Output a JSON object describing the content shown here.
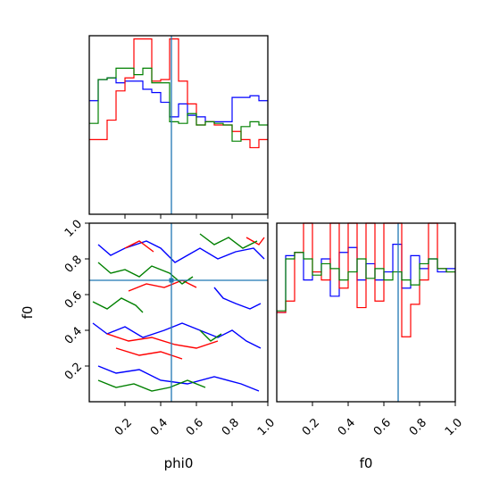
{
  "chart_data": [
    {
      "type": "histogram",
      "panel": "phi0 marginal",
      "xlim": [
        0,
        1
      ],
      "bin_edges": [
        0.0,
        0.05,
        0.1,
        0.15,
        0.2,
        0.25,
        0.3,
        0.35,
        0.4,
        0.45,
        0.5,
        0.55,
        0.6,
        0.65,
        0.7,
        0.75,
        0.8,
        0.85,
        0.9,
        0.95,
        1.0
      ],
      "y_ticks_shown": false,
      "series": [
        {
          "color": "#0000ff",
          "heights": [
            0.7,
            0.83,
            0.84,
            0.81,
            0.82,
            0.82,
            0.77,
            0.75,
            0.69,
            0.6,
            0.68,
            0.61,
            0.6,
            0.57,
            0.57,
            0.57,
            0.72,
            0.72,
            0.73,
            0.7
          ]
        },
        {
          "color": "#ff0000",
          "heights": [
            0.46,
            0.46,
            0.58,
            0.76,
            0.84,
            1.08,
            1.08,
            0.82,
            0.83,
            1.08,
            0.82,
            0.68,
            0.55,
            0.57,
            0.55,
            0.55,
            0.51,
            0.46,
            0.41,
            0.46
          ]
        },
        {
          "color": "#008000",
          "heights": [
            0.56,
            0.83,
            0.84,
            0.9,
            0.9,
            0.86,
            0.9,
            0.81,
            0.81,
            0.57,
            0.56,
            0.62,
            0.55,
            0.57,
            0.56,
            0.55,
            0.45,
            0.54,
            0.57,
            0.55
          ]
        }
      ],
      "truth_line": {
        "x": 0.46,
        "color": "#1f77b4"
      },
      "x_ticks": [
        "0.2",
        "0.4",
        "0.6",
        "0.8",
        "1.0"
      ]
    },
    {
      "type": "contour",
      "panel": "phi0 vs f0 joint",
      "xlabel": "phi0",
      "ylabel": "f0",
      "xlim": [
        0,
        1
      ],
      "ylim": [
        0,
        1
      ],
      "x_tick_labels": [
        "0.2",
        "0.4",
        "0.6",
        "0.8",
        "1.0"
      ],
      "y_tick_labels": [
        "0.2",
        "0.4",
        "0.6",
        "0.8",
        "1.0"
      ],
      "series": [
        {
          "color": "#0000ff",
          "contours": [
            [
              [
                0.05,
                0.88
              ],
              [
                0.12,
                0.82
              ],
              [
                0.2,
                0.86
              ],
              [
                0.32,
                0.9
              ],
              [
                0.4,
                0.86
              ],
              [
                0.48,
                0.78
              ],
              [
                0.55,
                0.82
              ],
              [
                0.62,
                0.86
              ],
              [
                0.72,
                0.8
              ],
              [
                0.82,
                0.84
              ],
              [
                0.92,
                0.86
              ],
              [
                0.98,
                0.8
              ]
            ],
            [
              [
                0.02,
                0.44
              ],
              [
                0.1,
                0.38
              ],
              [
                0.2,
                0.42
              ],
              [
                0.3,
                0.36
              ],
              [
                0.42,
                0.4
              ],
              [
                0.52,
                0.44
              ],
              [
                0.62,
                0.4
              ],
              [
                0.72,
                0.36
              ],
              [
                0.8,
                0.4
              ],
              [
                0.88,
                0.34
              ],
              [
                0.96,
                0.3
              ]
            ],
            [
              [
                0.7,
                0.64
              ],
              [
                0.75,
                0.58
              ],
              [
                0.82,
                0.55
              ],
              [
                0.9,
                0.52
              ],
              [
                0.96,
                0.55
              ]
            ],
            [
              [
                0.05,
                0.2
              ],
              [
                0.15,
                0.16
              ],
              [
                0.28,
                0.18
              ],
              [
                0.4,
                0.12
              ],
              [
                0.55,
                0.1
              ],
              [
                0.7,
                0.14
              ],
              [
                0.85,
                0.1
              ],
              [
                0.95,
                0.06
              ]
            ]
          ]
        },
        {
          "color": "#ff0000",
          "contours": [
            [
              [
                0.1,
                0.38
              ],
              [
                0.22,
                0.34
              ],
              [
                0.35,
                0.36
              ],
              [
                0.48,
                0.32
              ],
              [
                0.6,
                0.3
              ],
              [
                0.72,
                0.34
              ]
            ],
            [
              [
                0.15,
                0.3
              ],
              [
                0.28,
                0.26
              ],
              [
                0.4,
                0.28
              ],
              [
                0.52,
                0.24
              ]
            ],
            [
              [
                0.22,
                0.62
              ],
              [
                0.32,
                0.66
              ],
              [
                0.42,
                0.64
              ],
              [
                0.52,
                0.68
              ],
              [
                0.6,
                0.64
              ]
            ],
            [
              [
                0.2,
                0.86
              ],
              [
                0.28,
                0.9
              ],
              [
                0.36,
                0.84
              ]
            ],
            [
              [
                0.88,
                0.92
              ],
              [
                0.95,
                0.88
              ],
              [
                0.98,
                0.92
              ]
            ]
          ]
        },
        {
          "color": "#008000",
          "contours": [
            [
              [
                0.05,
                0.78
              ],
              [
                0.12,
                0.72
              ],
              [
                0.2,
                0.74
              ],
              [
                0.28,
                0.7
              ],
              [
                0.35,
                0.76
              ],
              [
                0.45,
                0.72
              ],
              [
                0.52,
                0.66
              ],
              [
                0.58,
                0.7
              ]
            ],
            [
              [
                0.02,
                0.56
              ],
              [
                0.1,
                0.52
              ],
              [
                0.18,
                0.58
              ],
              [
                0.26,
                0.54
              ],
              [
                0.3,
                0.5
              ]
            ],
            [
              [
                0.05,
                0.12
              ],
              [
                0.15,
                0.08
              ],
              [
                0.25,
                0.1
              ],
              [
                0.35,
                0.06
              ],
              [
                0.45,
                0.08
              ],
              [
                0.55,
                0.12
              ],
              [
                0.65,
                0.08
              ]
            ],
            [
              [
                0.62,
                0.94
              ],
              [
                0.7,
                0.88
              ],
              [
                0.78,
                0.92
              ],
              [
                0.86,
                0.86
              ],
              [
                0.94,
                0.9
              ]
            ],
            [
              [
                0.62,
                0.4
              ],
              [
                0.68,
                0.34
              ],
              [
                0.74,
                0.38
              ]
            ]
          ]
        }
      ],
      "truth_lines": {
        "x": 0.46,
        "y": 0.68,
        "color": "#1f77b4"
      }
    },
    {
      "type": "histogram",
      "panel": "f0 marginal",
      "xlabel": "f0",
      "xlim": [
        0,
        1
      ],
      "bin_edges": [
        0.0,
        0.05,
        0.1,
        0.15,
        0.2,
        0.25,
        0.3,
        0.35,
        0.4,
        0.45,
        0.5,
        0.55,
        0.6,
        0.65,
        0.7,
        0.75,
        0.8,
        0.85,
        0.9,
        0.95,
        1.0
      ],
      "y_ticks_shown": false,
      "series": [
        {
          "color": "#0000ff",
          "heights": [
            0.55,
            0.9,
            0.92,
            0.75,
            0.8,
            0.88,
            0.65,
            0.92,
            0.95,
            0.75,
            0.85,
            0.75,
            0.8,
            0.97,
            0.7,
            0.9,
            0.82,
            0.88,
            0.8,
            0.82
          ]
        },
        {
          "color": "#ff0000",
          "heights": [
            0.55,
            0.62,
            0.92,
            1.1,
            0.8,
            0.75,
            1.1,
            0.7,
            1.1,
            0.58,
            1.1,
            0.62,
            1.1,
            1.1,
            0.4,
            0.6,
            0.75,
            1.1,
            0.82,
            0.8
          ]
        },
        {
          "color": "#008000",
          "heights": [
            0.56,
            0.88,
            0.92,
            0.88,
            0.78,
            0.85,
            0.82,
            0.75,
            0.8,
            0.88,
            0.76,
            0.82,
            0.75,
            0.8,
            0.75,
            0.72,
            0.85,
            0.88,
            0.82,
            0.8
          ]
        }
      ],
      "truth_line": {
        "x": 0.68,
        "color": "#1f77b4"
      },
      "x_tick_labels": [
        "0.2",
        "0.4",
        "0.6",
        "0.8",
        "1.0"
      ]
    }
  ]
}
